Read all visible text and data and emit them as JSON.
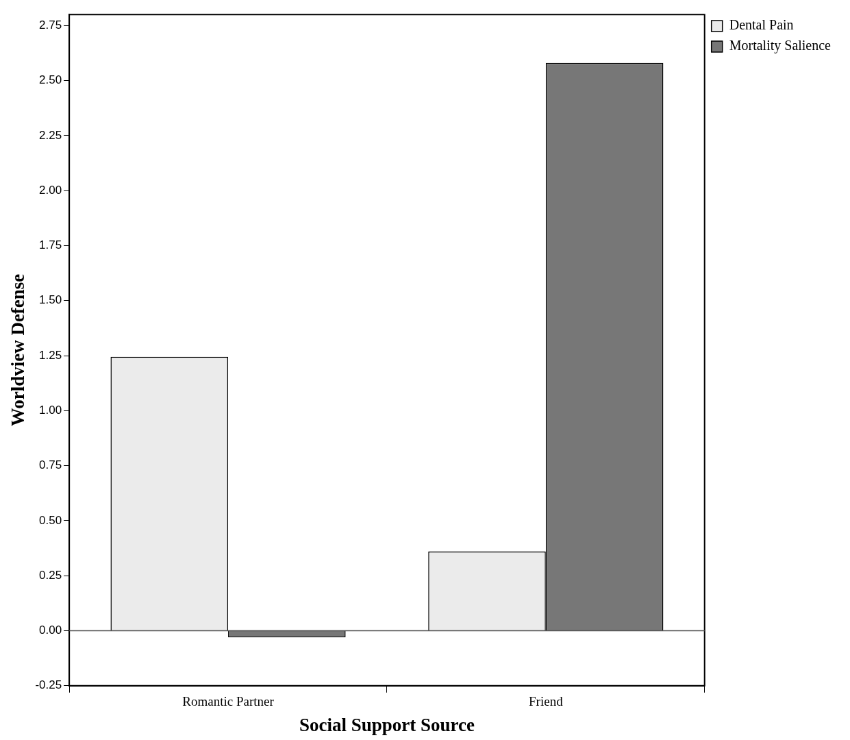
{
  "chart_data": {
    "type": "bar",
    "xlabel": "Social Support Source",
    "ylabel": "Worldview Defense",
    "categories": [
      "Romantic Partner",
      "Friend"
    ],
    "series": [
      {
        "name": "Dental Pain",
        "color": "#ebebeb",
        "values": [
          1.245,
          0.36
        ]
      },
      {
        "name": "Mortality Salience",
        "color": "#777777",
        "values": [
          -0.03,
          2.58
        ]
      }
    ],
    "ylim": [
      -0.25,
      2.8
    ],
    "yticks": [
      {
        "value": -0.25,
        "label": "-0.25"
      },
      {
        "value": 0,
        "label": "0.00"
      },
      {
        "value": 0.25,
        "label": "0.25"
      },
      {
        "value": 0.5,
        "label": "0.50"
      },
      {
        "value": 0.75,
        "label": "0.75"
      },
      {
        "value": 1,
        "label": "1.00"
      },
      {
        "value": 1.25,
        "label": "1.25"
      },
      {
        "value": 1.5,
        "label": "1.50"
      },
      {
        "value": 1.75,
        "label": "1.75"
      },
      {
        "value": 2,
        "label": "2.00"
      },
      {
        "value": 2.25,
        "label": "2.25"
      },
      {
        "value": 2.5,
        "label": "2.50"
      },
      {
        "value": 2.75,
        "label": "2.75"
      }
    ],
    "ref_lines": [
      {
        "axis": "y",
        "value": 0
      }
    ],
    "grid": false,
    "legend": "top right"
  }
}
